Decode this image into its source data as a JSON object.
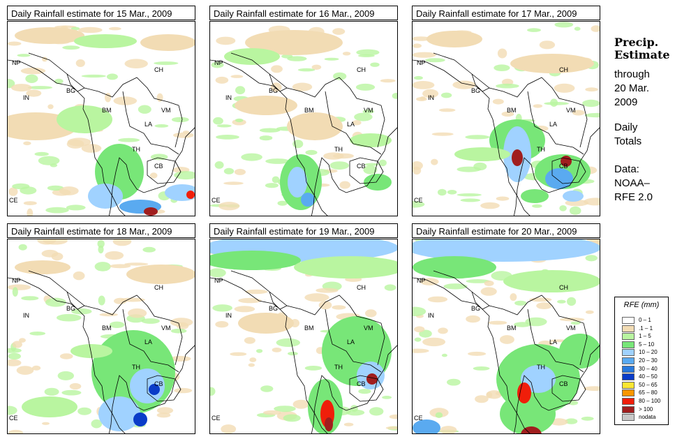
{
  "panels": [
    {
      "title": "Daily Rainfall estimate for  15 Mar., 2009",
      "date": "15 Mar., 2009"
    },
    {
      "title": "Daily Rainfall estimate for  16 Mar., 2009",
      "date": "16 Mar., 2009"
    },
    {
      "title": "Daily Rainfall estimate for  17 Mar., 2009",
      "date": "17 Mar., 2009"
    },
    {
      "title": "Daily Rainfall estimate for  18 Mar., 2009",
      "date": "18 Mar., 2009"
    },
    {
      "title": "Daily Rainfall estimate for  19 Mar., 2009",
      "date": "19 Mar., 2009"
    },
    {
      "title": "Daily Rainfall estimate for  20 Mar., 2009",
      "date": "20 Mar., 2009"
    }
  ],
  "region_labels": [
    "NP",
    "CH",
    "IN",
    "BG",
    "BM",
    "VM",
    "LA",
    "TH",
    "CB",
    "CE"
  ],
  "sidebar": {
    "title_line1": "Precip.",
    "title_line2": "Estimate",
    "through": "through",
    "date_line1": "20 Mar.",
    "date_line2": "2009",
    "totals_line1": "Daily",
    "totals_line2": "Totals",
    "data_line1": "Data:",
    "data_line2": "NOAA–",
    "data_line3": "RFE 2.0"
  },
  "legend": {
    "title": "RFE (mm)",
    "items": [
      {
        "label": "0 – 1",
        "color": "#ffffff"
      },
      {
        "label": ".1 – 1",
        "color": "#f2dcb4"
      },
      {
        "label": "1 – 5",
        "color": "#b9f5a0"
      },
      {
        "label": "5 – 10",
        "color": "#78e678"
      },
      {
        "label": "10 – 20",
        "color": "#a0d2ff"
      },
      {
        "label": "20 – 30",
        "color": "#5aaaf0"
      },
      {
        "label": "30 – 40",
        "color": "#2878dc"
      },
      {
        "label": "40 – 50",
        "color": "#0a3cc8"
      },
      {
        "label": "50 – 65",
        "color": "#fae632"
      },
      {
        "label": "65 – 80",
        "color": "#fa9600"
      },
      {
        "label": "80 – 100",
        "color": "#f01e0a"
      },
      {
        "label": "> 100",
        "color": "#a01e1e"
      },
      {
        "label": "nodata",
        "color": "#c8c8c8"
      }
    ]
  }
}
